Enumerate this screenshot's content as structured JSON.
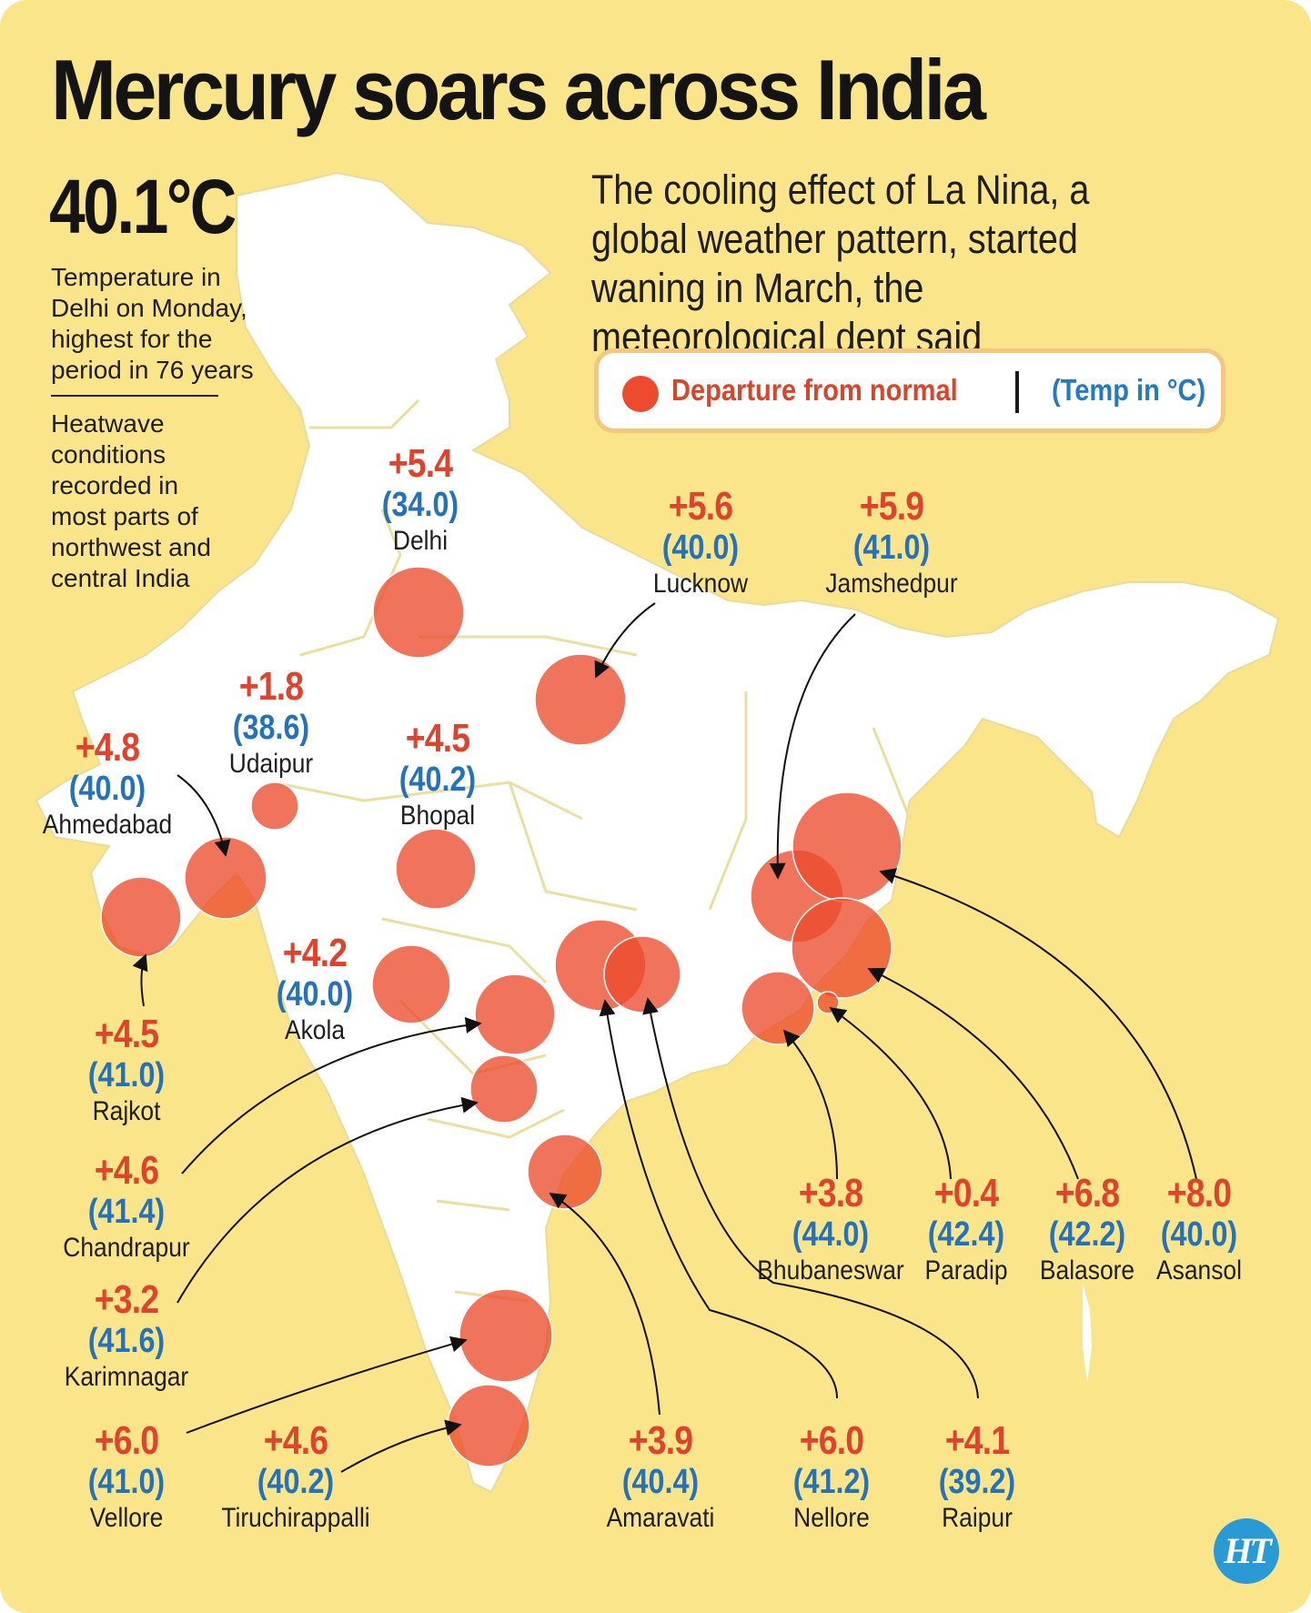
{
  "title": "Mercury soars across India",
  "headline_temp": "40.1°C",
  "headline_note": "Temperature in Delhi on Monday, highest for the period in 76 years",
  "heatwave_note": "Heatwave conditions recorded in most parts of northwest and central India",
  "subtitle": "The cooling effect of La Nina, a global weather pattern,  started waning in March, the meteorological dept said",
  "legend": {
    "departure_label": "Departure from normal",
    "temp_label": "(Temp in °C)"
  },
  "colors": {
    "background": "#fbe58a",
    "land": "#ffffff",
    "bubble": "#ec4b2d",
    "departure_text": "#e0432c",
    "temp_text": "#2472bb"
  },
  "cities": [
    {
      "name": "Delhi",
      "departure": "+5.4",
      "temp": "(34.0)"
    },
    {
      "name": "Lucknow",
      "departure": "+5.6",
      "temp": "(40.0)"
    },
    {
      "name": "Jamshedpur",
      "departure": "+5.9",
      "temp": "(41.0)"
    },
    {
      "name": "Udaipur",
      "departure": "+1.8",
      "temp": "(38.6)"
    },
    {
      "name": "Bhopal",
      "departure": "+4.5",
      "temp": "(40.2)"
    },
    {
      "name": "Ahmedabad",
      "departure": "+4.8",
      "temp": "(40.0)"
    },
    {
      "name": "Akola",
      "departure": "+4.2",
      "temp": "(40.0)"
    },
    {
      "name": "Rajkot",
      "departure": "+4.5",
      "temp": "(41.0)"
    },
    {
      "name": "Chandrapur",
      "departure": "+4.6",
      "temp": "(41.4)"
    },
    {
      "name": "Karimnagar",
      "departure": "+3.2",
      "temp": "(41.6)"
    },
    {
      "name": "Vellore",
      "departure": "+6.0",
      "temp": "(41.0)"
    },
    {
      "name": "Tiruchirappalli",
      "departure": "+4.6",
      "temp": "(40.2)"
    },
    {
      "name": "Amaravati",
      "departure": "+3.9",
      "temp": "(40.4)"
    },
    {
      "name": "Nellore",
      "departure": "+6.0",
      "temp": "(41.2)"
    },
    {
      "name": "Raipur",
      "departure": "+4.1",
      "temp": "(39.2)"
    },
    {
      "name": "Bhubaneswar",
      "departure": "+3.8",
      "temp": "(44.0)"
    },
    {
      "name": "Paradip",
      "departure": "+0.4",
      "temp": "(42.4)"
    },
    {
      "name": "Balasore",
      "departure": "+6.8",
      "temp": "(42.2)"
    },
    {
      "name": "Asansol",
      "departure": "+8.0",
      "temp": "(40.0)"
    }
  ],
  "logo": "HT"
}
